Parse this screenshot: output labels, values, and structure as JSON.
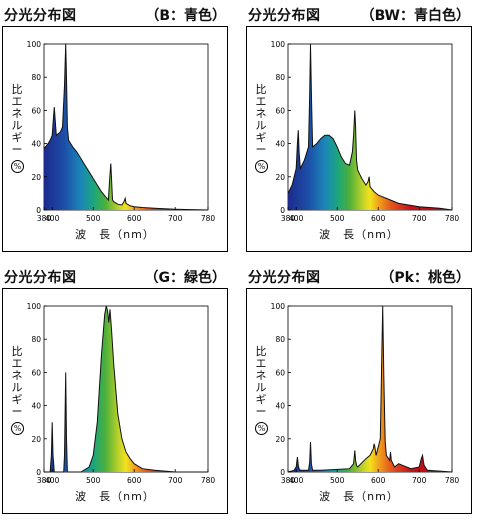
{
  "panels": [
    {
      "heading": "分光分布図",
      "lamp_type": "（B：青色）",
      "ylabel_text": "比エネルギー",
      "ylabel_unit": "%",
      "xlabel": "波　長（nm）",
      "chart_data": {
        "type": "area",
        "title": "分光分布図",
        "lamp_type": "B：青色",
        "xlim": [
          380,
          780
        ],
        "ylim": [
          0,
          100
        ],
        "xticks": [
          380,
          400,
          500,
          600,
          700,
          780
        ],
        "yticks": [
          0,
          20,
          40,
          60,
          80,
          100
        ],
        "x": [
          380,
          390,
          395,
          400,
          403,
          405,
          407,
          410,
          420,
          425,
          430,
          433,
          435,
          437,
          440,
          445,
          450,
          460,
          470,
          480,
          490,
          500,
          510,
          520,
          530,
          537,
          540,
          543,
          545,
          547,
          550,
          560,
          570,
          575,
          578,
          580,
          590,
          600,
          620,
          650,
          700,
          780
        ],
        "y": [
          37,
          40,
          42,
          45,
          55,
          62,
          55,
          45,
          47,
          50,
          75,
          100,
          80,
          50,
          42,
          40,
          38,
          35,
          31,
          27,
          23,
          19,
          15,
          11,
          8,
          6,
          18,
          28,
          18,
          6,
          5,
          3.5,
          3,
          5,
          7,
          4,
          2.5,
          2,
          1.5,
          1,
          0.5,
          0
        ]
      }
    },
    {
      "heading": "分光分布図",
      "lamp_type": "（BW：青白色）",
      "ylabel_text": "比エネルギー",
      "ylabel_unit": "%",
      "xlabel": "波　長（nm）",
      "chart_data": {
        "type": "area",
        "title": "分光分布図",
        "lamp_type": "BW：青白色",
        "xlim": [
          380,
          780
        ],
        "ylim": [
          0,
          100
        ],
        "xticks": [
          380,
          400,
          500,
          600,
          700,
          780
        ],
        "yticks": [
          0,
          20,
          40,
          60,
          80,
          100
        ],
        "x": [
          380,
          390,
          400,
          403,
          405,
          407,
          410,
          420,
          430,
          433,
          435,
          437,
          440,
          450,
          460,
          470,
          480,
          490,
          500,
          510,
          520,
          530,
          537,
          540,
          543,
          545,
          547,
          550,
          560,
          570,
          575,
          578,
          580,
          590,
          600,
          620,
          650,
          700,
          750,
          780
        ],
        "y": [
          10,
          15,
          25,
          40,
          48,
          35,
          25,
          30,
          38,
          70,
          100,
          70,
          38,
          40,
          43,
          45,
          45,
          43,
          38,
          32,
          28,
          27,
          35,
          45,
          60,
          50,
          30,
          24,
          19,
          15,
          17,
          20,
          14,
          11,
          9,
          7,
          4,
          2,
          1,
          0
        ]
      }
    },
    {
      "heading": "分光分布図",
      "lamp_type": "（G：緑色）",
      "ylabel_text": "比エネルギー",
      "ylabel_unit": "%",
      "xlabel": "波　長（nm）",
      "chart_data": {
        "type": "area",
        "title": "分光分布図",
        "lamp_type": "G：緑色",
        "xlim": [
          380,
          780
        ],
        "ylim": [
          0,
          100
        ],
        "xticks": [
          380,
          400,
          500,
          600,
          700,
          780
        ],
        "yticks": [
          0,
          20,
          40,
          60,
          80,
          100
        ],
        "x": [
          380,
          395,
          398,
          400,
          402,
          405,
          420,
          428,
          430,
          433,
          435,
          437,
          440,
          445,
          470,
          490,
          500,
          510,
          520,
          528,
          532,
          535,
          538,
          541,
          545,
          550,
          560,
          570,
          580,
          590,
          600,
          620,
          650,
          700,
          780
        ],
        "y": [
          0,
          0,
          10,
          30,
          10,
          0,
          0,
          0,
          10,
          60,
          20,
          0,
          0,
          0,
          0,
          3,
          10,
          30,
          70,
          95,
          100,
          97,
          90,
          98,
          85,
          65,
          35,
          20,
          12,
          8,
          5,
          2,
          1,
          0,
          0
        ]
      }
    },
    {
      "heading": "分光分布図",
      "lamp_type": "（Pk：桃色）",
      "ylabel_text": "比エネルギー",
      "ylabel_unit": "%",
      "xlabel": "波　長（nm）",
      "chart_data": {
        "type": "area",
        "title": "分光分布図",
        "lamp_type": "Pk：桃色",
        "xlim": [
          380,
          780
        ],
        "ylim": [
          0,
          100
        ],
        "xticks": [
          380,
          400,
          500,
          600,
          700,
          780
        ],
        "yticks": [
          0,
          20,
          40,
          60,
          80,
          100
        ],
        "x": [
          380,
          395,
          400,
          403,
          405,
          407,
          410,
          430,
          433,
          435,
          437,
          440,
          460,
          530,
          540,
          543,
          545,
          547,
          550,
          570,
          580,
          588,
          590,
          592,
          595,
          605,
          608,
          611,
          614,
          617,
          620,
          628,
          630,
          632,
          640,
          650,
          660,
          680,
          700,
          705,
          708,
          712,
          720,
          780
        ],
        "y": [
          0,
          1,
          3,
          9,
          4,
          2,
          1,
          1,
          6,
          18,
          5,
          1,
          1,
          2,
          5,
          13,
          7,
          4,
          3,
          8,
          10,
          14,
          17,
          15,
          10,
          20,
          60,
          100,
          55,
          18,
          10,
          7,
          12,
          7,
          3,
          5,
          4,
          2,
          3,
          8,
          10,
          4,
          1,
          0
        ]
      }
    }
  ],
  "colors": {
    "curve": "#111111",
    "spectrum_start": "#1c2a8c",
    "spectrum_end": "#c8101a"
  }
}
